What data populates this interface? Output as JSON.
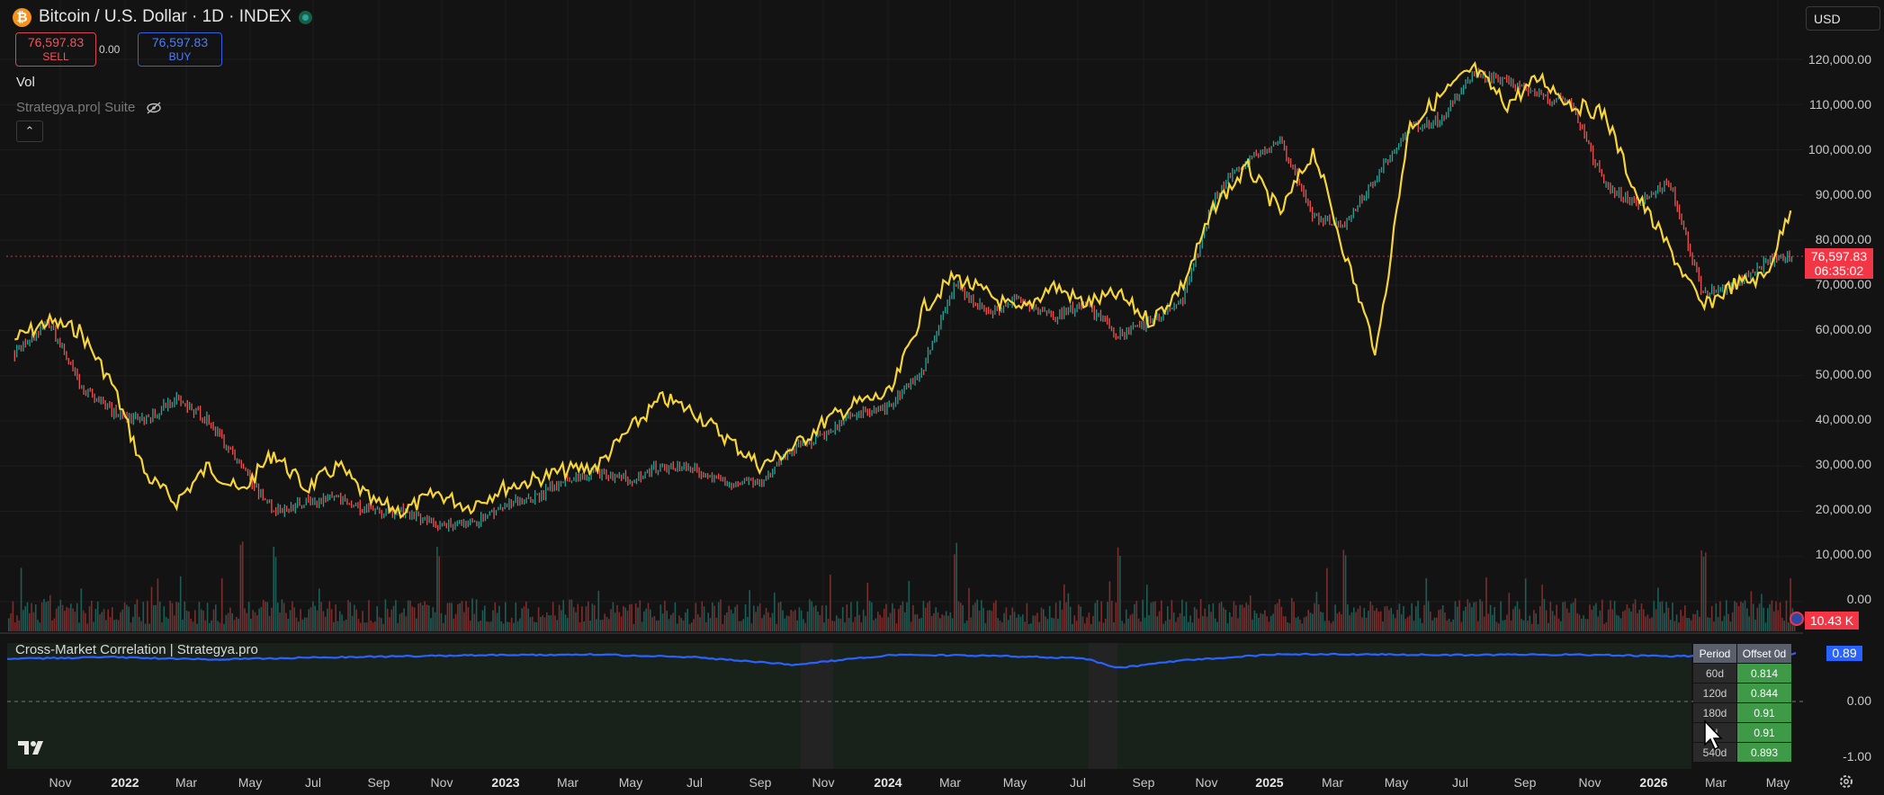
{
  "header": {
    "symbol_icon": "₿",
    "title": "Bitcoin / U.S. Dollar · 1D · INDEX",
    "currency": "USD"
  },
  "trade": {
    "sell_price": "76,597.83",
    "sell_label": "SELL",
    "spread": "0.00",
    "buy_price": "76,597.83",
    "buy_label": "BUY"
  },
  "indicators": {
    "vol_label": "Vol",
    "suite_label": "Strategya.pro| Suite",
    "collapse_icon": "chevron-up-icon"
  },
  "price_axis": {
    "ticks": [
      "120,000.00",
      "110,000.00",
      "100,000.00",
      "90,000.00",
      "80,000.00",
      "70,000.00",
      "60,000.00",
      "50,000.00",
      "40,000.00",
      "30,000.00",
      "20,000.00",
      "10,000.00",
      "0.00"
    ],
    "last_price": "76,597.83",
    "countdown": "06:35:02",
    "volume_tag": "10.43 K"
  },
  "time_axis": {
    "labels": [
      {
        "text": "Nov",
        "year": false
      },
      {
        "text": "2022",
        "year": true
      },
      {
        "text": "Mar",
        "year": false
      },
      {
        "text": "May",
        "year": false
      },
      {
        "text": "Jul",
        "year": false
      },
      {
        "text": "Sep",
        "year": false
      },
      {
        "text": "Nov",
        "year": false
      },
      {
        "text": "2023",
        "year": true
      },
      {
        "text": "Mar",
        "year": false
      },
      {
        "text": "May",
        "year": false
      },
      {
        "text": "Jul",
        "year": false
      },
      {
        "text": "Sep",
        "year": false
      },
      {
        "text": "Nov",
        "year": false
      },
      {
        "text": "2024",
        "year": true
      },
      {
        "text": "Mar",
        "year": false
      },
      {
        "text": "May",
        "year": false
      },
      {
        "text": "Jul",
        "year": false
      },
      {
        "text": "Sep",
        "year": false
      },
      {
        "text": "Nov",
        "year": false
      },
      {
        "text": "2025",
        "year": true
      },
      {
        "text": "Mar",
        "year": false
      },
      {
        "text": "May",
        "year": false
      },
      {
        "text": "Jul",
        "year": false
      },
      {
        "text": "Sep",
        "year": false
      },
      {
        "text": "Nov",
        "year": false
      },
      {
        "text": "2026",
        "year": true
      },
      {
        "text": "Mar",
        "year": false
      },
      {
        "text": "May",
        "year": false
      }
    ]
  },
  "correlation_pane": {
    "title": "Cross-Market Correlation | Strategya.pro",
    "current_value": "0.89",
    "ticks": [
      "0.00",
      "-1.00"
    ],
    "table": {
      "headers": [
        "Period",
        "Offset 0d"
      ],
      "rows": [
        {
          "period": "60d",
          "value": "0.814"
        },
        {
          "period": "120d",
          "value": "0.844"
        },
        {
          "period": "180d",
          "value": "0.91"
        },
        {
          "period": "d",
          "value": "0.91"
        },
        {
          "period": "540d",
          "value": "0.893"
        }
      ]
    }
  },
  "chart_data": {
    "type": "line",
    "title": "Bitcoin / U.S. Dollar · 1D · INDEX",
    "x_range": [
      "2021-10",
      "2026-05"
    ],
    "ylim": [
      0,
      125000
    ],
    "grid": true,
    "series": [
      {
        "color": "#f6d53b",
        "x": [
          "2021-10-15",
          "2021-11-15",
          "2021-12-15",
          "2022-01-15",
          "2022-02-15",
          "2022-03-15",
          "2022-04-15",
          "2022-05-15",
          "2022-06-15",
          "2022-07-15",
          "2022-08-15",
          "2022-09-15",
          "2022-10-15",
          "2022-11-15",
          "2022-12-15",
          "2023-01-15",
          "2023-02-15",
          "2023-03-15",
          "2023-04-15",
          "2023-05-15",
          "2023-06-15",
          "2023-07-15",
          "2023-08-15",
          "2023-09-15",
          "2023-10-15",
          "2023-11-15",
          "2023-12-15",
          "2024-01-15",
          "2024-02-15",
          "2024-03-15",
          "2024-04-15",
          "2024-05-15",
          "2024-06-15",
          "2024-07-15",
          "2024-08-15",
          "2024-09-15",
          "2024-10-15",
          "2024-11-15",
          "2024-12-15",
          "2025-01-15",
          "2025-02-15",
          "2025-03-15",
          "2025-04-15",
          "2025-05-15",
          "2025-06-15",
          "2025-07-15",
          "2025-08-15",
          "2025-09-15",
          "2025-10-15",
          "2025-11-15",
          "2025-12-15",
          "2026-01-15",
          "2026-02-15",
          "2026-03-15",
          "2026-04-15",
          "2026-05-10"
        ],
        "y": [
          58000,
          62000,
          60000,
          48000,
          28000,
          22000,
          30000,
          24000,
          33000,
          25000,
          30000,
          22000,
          20000,
          24000,
          21000,
          25000,
          27000,
          29000,
          30000,
          38000,
          45000,
          42000,
          36000,
          30000,
          34000,
          40000,
          44000,
          46000,
          65000,
          72000,
          68000,
          64000,
          70000,
          66000,
          68000,
          62000,
          70000,
          88000,
          96000,
          86000,
          100000,
          78000,
          55000,
          105000,
          112000,
          118000,
          110000,
          116000,
          110000,
          108000,
          90000,
          78000,
          65000,
          70000,
          72000,
          88000
        ]
      },
      {
        "color": "#26a69a",
        "x": [
          "2021-10-15",
          "2021-11-15",
          "2021-12-15",
          "2022-01-15",
          "2022-02-15",
          "2022-03-15",
          "2022-04-15",
          "2022-05-15",
          "2022-06-15",
          "2022-07-15",
          "2022-08-15",
          "2022-09-15",
          "2022-10-15",
          "2022-11-15",
          "2022-12-15",
          "2023-01-15",
          "2023-02-15",
          "2023-03-15",
          "2023-04-15",
          "2023-05-15",
          "2023-06-15",
          "2023-07-15",
          "2023-08-15",
          "2023-09-15",
          "2023-10-15",
          "2023-11-15",
          "2023-12-15",
          "2024-01-15",
          "2024-02-15",
          "2024-03-15",
          "2024-04-15",
          "2024-05-15",
          "2024-06-15",
          "2024-07-15",
          "2024-08-15",
          "2024-09-15",
          "2024-10-15",
          "2024-11-15",
          "2024-12-15",
          "2025-01-15",
          "2025-02-15",
          "2025-03-15",
          "2025-04-15",
          "2025-05-15",
          "2025-06-15",
          "2025-07-15",
          "2025-08-15",
          "2025-09-15",
          "2025-10-15",
          "2025-11-15",
          "2025-12-15",
          "2026-01-15",
          "2026-02-15",
          "2026-03-15",
          "2026-04-15",
          "2026-05-10"
        ],
        "y": [
          55000,
          62000,
          48000,
          42000,
          40000,
          45000,
          40000,
          30000,
          20000,
          22000,
          23000,
          19500,
          20000,
          17000,
          17000,
          21000,
          23000,
          27000,
          28500,
          27000,
          30000,
          29500,
          26000,
          26500,
          34000,
          37000,
          42000,
          43000,
          52000,
          70000,
          64000,
          67000,
          63000,
          66000,
          59000,
          62000,
          67000,
          90000,
          98000,
          102000,
          85000,
          83000,
          94000,
          105000,
          107000,
          117000,
          115000,
          112000,
          110000,
          92000,
          88000,
          93000,
          68000,
          70000,
          75000,
          77000
        ]
      }
    ],
    "volume_spikes": [
      "2022-05",
      "2022-06",
      "2022-11",
      "2024-03",
      "2024-08",
      "2025-03",
      "2026-02"
    ],
    "correlation": {
      "series_color": "#2962ff",
      "ylim": [
        -1.2,
        0.9
      ],
      "x": [
        "2021-10",
        "2022-01",
        "2022-04",
        "2022-07",
        "2022-10",
        "2023-01",
        "2023-04",
        "2023-07",
        "2023-10",
        "2024-01",
        "2024-04",
        "2024-07",
        "2024-08",
        "2024-10",
        "2025-01",
        "2025-04",
        "2025-07",
        "2025-10",
        "2026-01",
        "2026-04",
        "2026-05"
      ],
      "y": [
        0.79,
        0.82,
        0.78,
        0.81,
        0.84,
        0.86,
        0.87,
        0.82,
        0.68,
        0.86,
        0.85,
        0.8,
        0.62,
        0.76,
        0.88,
        0.87,
        0.86,
        0.87,
        0.84,
        0.85,
        0.89
      ]
    }
  }
}
